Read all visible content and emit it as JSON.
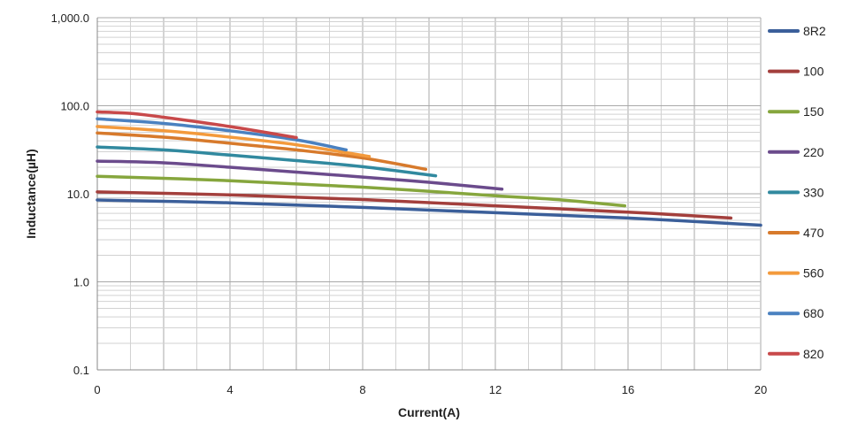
{
  "chart_data": {
    "type": "line",
    "xlabel": "Current(A)",
    "ylabel": "Inductance(µH)",
    "x_scale": "linear",
    "y_scale": "log",
    "xlim": [
      0,
      20
    ],
    "ylim": [
      0.1,
      1000
    ],
    "x_ticks": [
      0,
      4,
      8,
      12,
      16,
      20
    ],
    "x_tick_labels": [
      "0",
      "4",
      "8",
      "12",
      "16",
      "20"
    ],
    "y_ticks": [
      0.1,
      1,
      10,
      100,
      1000
    ],
    "y_tick_labels": [
      "0.1",
      "1.0",
      "10.0",
      "100.0",
      "1,000.0"
    ],
    "grid": true,
    "legend_position": "right",
    "series": [
      {
        "name": "8R2",
        "color": "#3b5f9a",
        "points": [
          [
            0,
            8.5
          ],
          [
            4,
            7.9
          ],
          [
            8,
            7.0
          ],
          [
            12,
            6.1
          ],
          [
            16,
            5.3
          ],
          [
            20,
            4.4
          ]
        ]
      },
      {
        "name": "100",
        "color": "#a33f3c",
        "points": [
          [
            0,
            10.5
          ],
          [
            4,
            9.7
          ],
          [
            8,
            8.6
          ],
          [
            12,
            7.3
          ],
          [
            16,
            6.2
          ],
          [
            19.1,
            5.3
          ]
        ]
      },
      {
        "name": "150",
        "color": "#86a63d",
        "points": [
          [
            0,
            15.8
          ],
          [
            4,
            14.1
          ],
          [
            8,
            11.9
          ],
          [
            12,
            9.5
          ],
          [
            14,
            8.5
          ],
          [
            15.9,
            7.3
          ]
        ]
      },
      {
        "name": "220",
        "color": "#6b4b8c",
        "points": [
          [
            0,
            23.5
          ],
          [
            2,
            22.5
          ],
          [
            4,
            20.0
          ],
          [
            8,
            15.5
          ],
          [
            10,
            13.5
          ],
          [
            12.2,
            11.3
          ]
        ]
      },
      {
        "name": "330",
        "color": "#31899f",
        "points": [
          [
            0,
            34.0
          ],
          [
            2,
            31.5
          ],
          [
            4,
            27.5
          ],
          [
            6,
            23.8
          ],
          [
            8,
            20.3
          ],
          [
            10.2,
            16.0
          ]
        ]
      },
      {
        "name": "470",
        "color": "#d77a2c",
        "points": [
          [
            0,
            49.0
          ],
          [
            2,
            44.0
          ],
          [
            4,
            37.5
          ],
          [
            6,
            31.5
          ],
          [
            8,
            25.5
          ],
          [
            9.9,
            19.0
          ]
        ]
      },
      {
        "name": "560",
        "color": "#f39a3c",
        "points": [
          [
            0,
            58.0
          ],
          [
            2,
            52.0
          ],
          [
            4,
            44.0
          ],
          [
            6,
            36.0
          ],
          [
            8.2,
            26.5
          ]
        ]
      },
      {
        "name": "680",
        "color": "#4a81c0",
        "points": [
          [
            0,
            71.0
          ],
          [
            2,
            63.0
          ],
          [
            4,
            52.0
          ],
          [
            6,
            41.0
          ],
          [
            7.5,
            31.5
          ]
        ]
      },
      {
        "name": "820",
        "color": "#c8494a",
        "points": [
          [
            0,
            85.0
          ],
          [
            1,
            82.0
          ],
          [
            2,
            74.0
          ],
          [
            4,
            58.0
          ],
          [
            6,
            43.5
          ]
        ]
      }
    ]
  }
}
